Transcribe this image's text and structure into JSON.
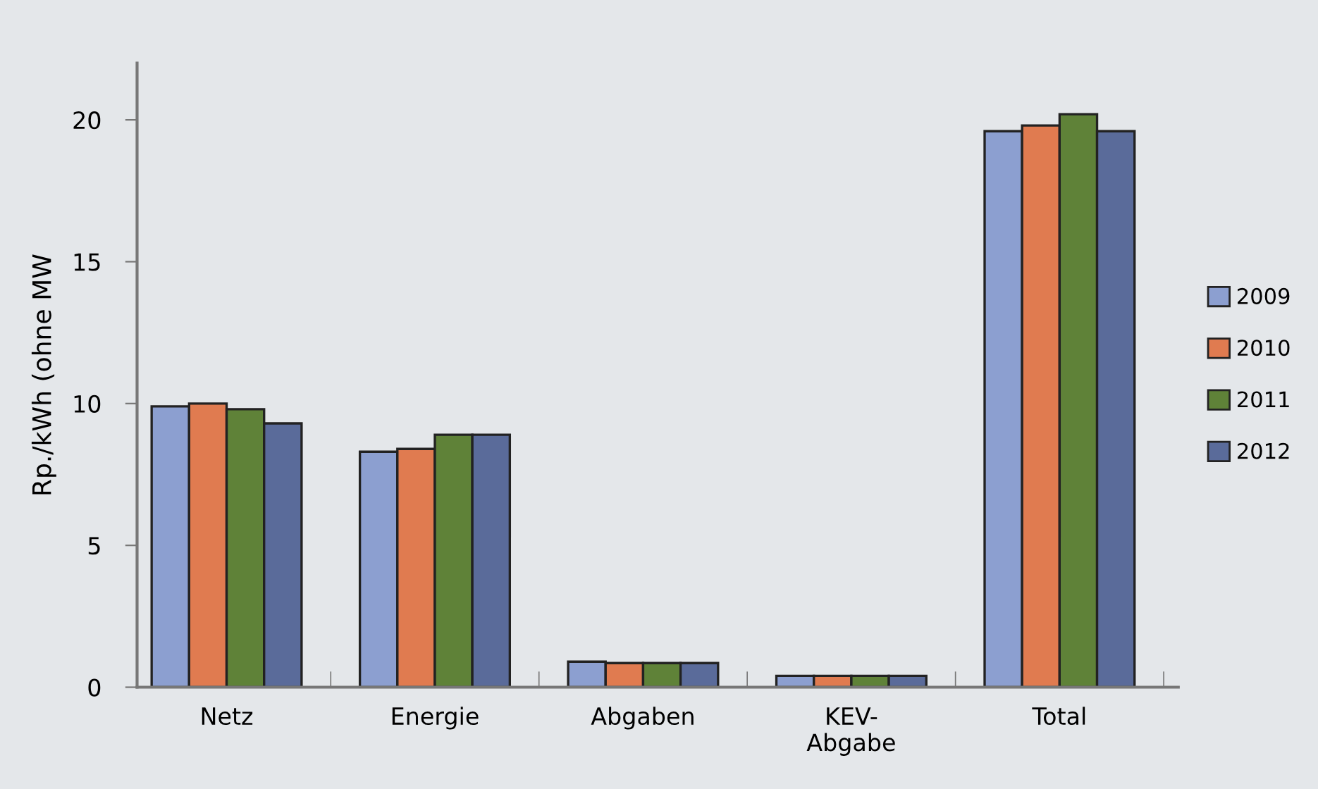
{
  "chart_data": {
    "type": "bar",
    "ylabel": "Rp./kWh (ohne MW",
    "categories": [
      "Netz",
      "Energie",
      "Abgaben",
      "KEV-\nAbgabe",
      "Total"
    ],
    "series": [
      {
        "name": "2009",
        "color": "#8c9fd0",
        "values": [
          9.9,
          8.3,
          0.9,
          0.4,
          19.6
        ]
      },
      {
        "name": "2010",
        "color": "#e07b50",
        "values": [
          10.0,
          8.4,
          0.85,
          0.4,
          19.8
        ]
      },
      {
        "name": "2011",
        "color": "#5f8238",
        "values": [
          9.8,
          8.9,
          0.85,
          0.4,
          20.2
        ]
      },
      {
        "name": "2012",
        "color": "#5a6b9a",
        "values": [
          9.3,
          8.9,
          0.85,
          0.4,
          19.6
        ]
      }
    ],
    "ylim": [
      0,
      22
    ],
    "yticks": [
      0,
      5,
      10,
      15,
      20
    ],
    "grid": false,
    "legend": "right"
  }
}
